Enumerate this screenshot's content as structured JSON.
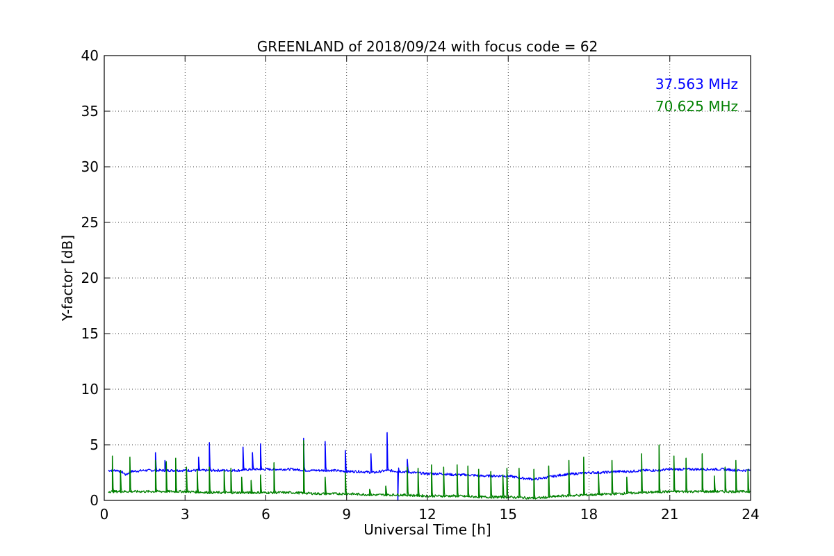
{
  "chart_data": {
    "type": "line",
    "title": "GREENLAND of 2018/09/24 with focus code = 62",
    "xlabel": "Universal Time [h]",
    "ylabel": "Y-factor [dB]",
    "xlim": [
      0,
      24
    ],
    "ylim": [
      0,
      40
    ],
    "xticks": [
      0,
      3,
      6,
      9,
      12,
      15,
      18,
      21,
      24
    ],
    "yticks": [
      0,
      5,
      10,
      15,
      20,
      25,
      30,
      35,
      40
    ],
    "grid": true,
    "legend_position": "top-right",
    "series": [
      {
        "name": "37.563 MHz",
        "color": "#0000ff",
        "x": [
          0.15,
          0.5,
          0.7,
          0.8,
          1.0,
          1.5,
          2.0,
          2.5,
          3.0,
          3.5,
          4.0,
          4.5,
          5.0,
          5.5,
          6.0,
          6.5,
          7.0,
          7.5,
          8.0,
          8.5,
          9.0,
          9.5,
          10.0,
          10.5,
          11.0,
          11.5,
          12.0,
          12.5,
          13.0,
          13.5,
          14.0,
          14.5,
          15.0,
          15.5,
          16.0,
          16.5,
          17.0,
          17.5,
          18.0,
          18.5,
          19.0,
          19.5,
          20.0,
          20.5,
          21.0,
          21.5,
          22.0,
          22.5,
          23.0,
          23.5,
          24.0
        ],
        "y": [
          2.7,
          2.7,
          2.5,
          2.3,
          2.6,
          2.7,
          2.7,
          2.7,
          2.7,
          2.7,
          2.7,
          2.7,
          2.7,
          2.8,
          2.8,
          2.8,
          2.8,
          2.7,
          2.7,
          2.7,
          2.6,
          2.6,
          2.5,
          2.7,
          2.6,
          2.5,
          2.4,
          2.4,
          2.3,
          2.3,
          2.2,
          2.2,
          2.2,
          2.0,
          1.9,
          2.1,
          2.3,
          2.4,
          2.5,
          2.5,
          2.6,
          2.6,
          2.7,
          2.7,
          2.8,
          2.8,
          2.8,
          2.8,
          2.8,
          2.7,
          2.7
        ],
        "spikes": [
          {
            "x": 1.9,
            "y": 4.3
          },
          {
            "x": 2.25,
            "y": 3.6
          },
          {
            "x": 3.5,
            "y": 3.9
          },
          {
            "x": 3.9,
            "y": 5.2
          },
          {
            "x": 5.15,
            "y": 4.8
          },
          {
            "x": 5.5,
            "y": 4.3
          },
          {
            "x": 5.8,
            "y": 5.1
          },
          {
            "x": 7.4,
            "y": 5.6
          },
          {
            "x": 8.2,
            "y": 5.3
          },
          {
            "x": 8.95,
            "y": 4.5
          },
          {
            "x": 9.9,
            "y": 4.2
          },
          {
            "x": 10.5,
            "y": 6.1
          },
          {
            "x": 11.25,
            "y": 3.7
          }
        ],
        "dips": [
          {
            "x": 10.9,
            "y": 0.0
          }
        ]
      },
      {
        "name": "70.625 MHz",
        "color": "#008000",
        "x": [
          0.15,
          1.0,
          2.0,
          3.0,
          4.0,
          5.0,
          6.0,
          7.0,
          8.0,
          9.0,
          10.0,
          11.0,
          12.0,
          13.0,
          14.0,
          15.0,
          16.0,
          17.0,
          18.0,
          19.0,
          20.0,
          21.0,
          22.0,
          23.0,
          24.0
        ],
        "y": [
          0.8,
          0.8,
          0.8,
          0.8,
          0.7,
          0.7,
          0.7,
          0.7,
          0.6,
          0.6,
          0.5,
          0.5,
          0.4,
          0.4,
          0.3,
          0.3,
          0.2,
          0.4,
          0.5,
          0.6,
          0.7,
          0.8,
          0.8,
          0.8,
          0.8
        ],
        "spikes": [
          {
            "x": 0.3,
            "y": 4.0
          },
          {
            "x": 0.6,
            "y": 2.7
          },
          {
            "x": 0.95,
            "y": 3.9
          },
          {
            "x": 1.9,
            "y": 3.6
          },
          {
            "x": 2.3,
            "y": 3.5
          },
          {
            "x": 2.65,
            "y": 3.8
          },
          {
            "x": 3.05,
            "y": 3.0
          },
          {
            "x": 3.45,
            "y": 2.8
          },
          {
            "x": 3.9,
            "y": 3.0
          },
          {
            "x": 4.45,
            "y": 2.7
          },
          {
            "x": 4.7,
            "y": 2.9
          },
          {
            "x": 5.1,
            "y": 2.1
          },
          {
            "x": 5.45,
            "y": 1.8
          },
          {
            "x": 5.8,
            "y": 2.3
          },
          {
            "x": 6.3,
            "y": 3.4
          },
          {
            "x": 7.4,
            "y": 5.4
          },
          {
            "x": 8.2,
            "y": 2.1
          },
          {
            "x": 8.95,
            "y": 2.5
          },
          {
            "x": 9.85,
            "y": 1.0
          },
          {
            "x": 10.45,
            "y": 1.3
          },
          {
            "x": 11.25,
            "y": 3.0
          },
          {
            "x": 11.65,
            "y": 2.9
          },
          {
            "x": 12.15,
            "y": 3.2
          },
          {
            "x": 12.6,
            "y": 3.0
          },
          {
            "x": 13.1,
            "y": 3.2
          },
          {
            "x": 13.5,
            "y": 3.1
          },
          {
            "x": 13.9,
            "y": 2.8
          },
          {
            "x": 14.35,
            "y": 2.6
          },
          {
            "x": 14.8,
            "y": 2.3
          },
          {
            "x": 14.95,
            "y": 2.9
          },
          {
            "x": 15.4,
            "y": 2.9
          },
          {
            "x": 15.95,
            "y": 2.8
          },
          {
            "x": 16.5,
            "y": 3.1
          },
          {
            "x": 17.25,
            "y": 3.6
          },
          {
            "x": 17.8,
            "y": 3.9
          },
          {
            "x": 18.35,
            "y": 2.4
          },
          {
            "x": 18.85,
            "y": 3.6
          },
          {
            "x": 19.4,
            "y": 2.1
          },
          {
            "x": 19.95,
            "y": 4.2
          },
          {
            "x": 20.6,
            "y": 5.0
          },
          {
            "x": 21.15,
            "y": 4.0
          },
          {
            "x": 21.6,
            "y": 3.8
          },
          {
            "x": 22.2,
            "y": 4.2
          },
          {
            "x": 22.65,
            "y": 2.2
          },
          {
            "x": 23.05,
            "y": 3.0
          },
          {
            "x": 23.45,
            "y": 3.6
          },
          {
            "x": 23.9,
            "y": 2.8
          }
        ]
      }
    ]
  }
}
